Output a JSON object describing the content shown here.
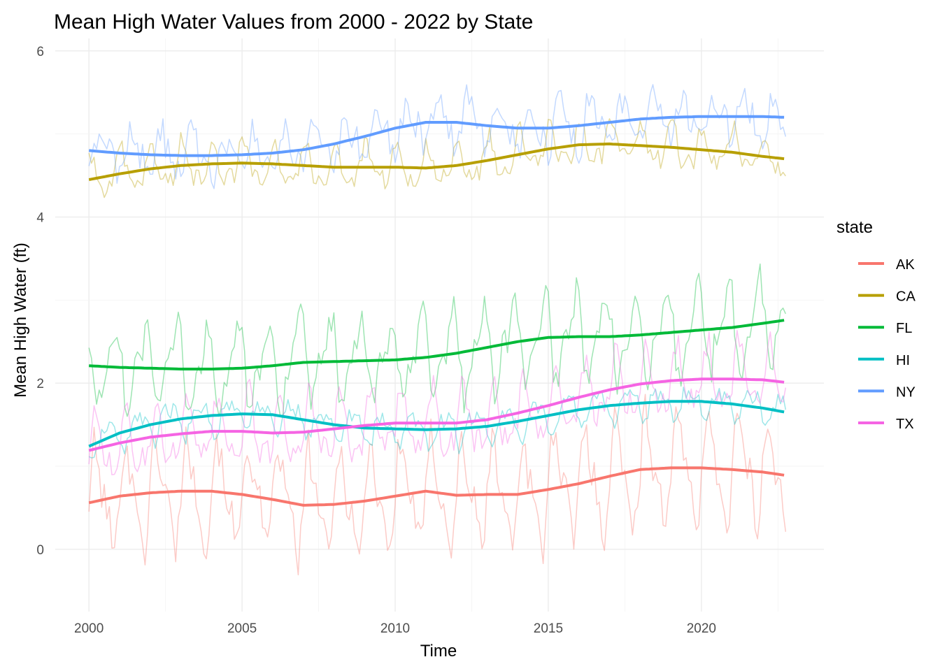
{
  "chart_data": {
    "type": "line",
    "title": "Mean High Water Values from 2000 - 2022 by State",
    "xlabel": "Time",
    "ylabel": "Mean High Water (ft)",
    "xlim": [
      1998.9,
      2024.0
    ],
    "ylim": [
      -0.75,
      6.15
    ],
    "x_ticks": [
      2000,
      2005,
      2010,
      2015,
      2020
    ],
    "y_ticks": [
      0,
      2,
      4,
      6
    ],
    "grid": true,
    "legend_title": "state",
    "legend_position": "right",
    "series": [
      {
        "name": "AK",
        "color": "#F8766D",
        "raw_amplitude": 0.55,
        "raw_noise": 0.15,
        "raw_range": [
          -0.45,
          2.4
        ],
        "smooth": {
          "x": [
            2000,
            2001,
            2002,
            2003,
            2004,
            2005,
            2006,
            2007,
            2008,
            2009,
            2010,
            2011,
            2012,
            2013,
            2014,
            2015,
            2016,
            2017,
            2018,
            2019,
            2020,
            2021,
            2022,
            2022.75
          ],
          "y": [
            0.56,
            0.64,
            0.68,
            0.7,
            0.7,
            0.66,
            0.6,
            0.53,
            0.54,
            0.58,
            0.64,
            0.7,
            0.65,
            0.66,
            0.66,
            0.72,
            0.79,
            0.88,
            0.96,
            0.98,
            0.98,
            0.96,
            0.93,
            0.89
          ]
        }
      },
      {
        "name": "CA",
        "color": "#B79F00",
        "raw_amplitude": 0.22,
        "raw_noise": 0.07,
        "raw_range": [
          4.2,
          5.35
        ],
        "smooth": {
          "x": [
            2000,
            2001,
            2002,
            2003,
            2004,
            2005,
            2006,
            2007,
            2008,
            2009,
            2010,
            2011,
            2012,
            2013,
            2014,
            2015,
            2016,
            2017,
            2018,
            2019,
            2020,
            2021,
            2022,
            2022.75
          ],
          "y": [
            4.45,
            4.52,
            4.58,
            4.62,
            4.64,
            4.65,
            4.64,
            4.62,
            4.6,
            4.6,
            4.6,
            4.59,
            4.62,
            4.68,
            4.75,
            4.82,
            4.87,
            4.88,
            4.86,
            4.84,
            4.81,
            4.78,
            4.73,
            4.7
          ]
        }
      },
      {
        "name": "FL",
        "color": "#00BA38",
        "raw_amplitude": 0.45,
        "raw_noise": 0.12,
        "raw_range": [
          1.6,
          3.45
        ],
        "smooth": {
          "x": [
            2000,
            2001,
            2002,
            2003,
            2004,
            2005,
            2006,
            2007,
            2008,
            2009,
            2010,
            2011,
            2012,
            2013,
            2014,
            2015,
            2016,
            2017,
            2018,
            2019,
            2020,
            2021,
            2022,
            2022.75
          ],
          "y": [
            2.21,
            2.19,
            2.18,
            2.17,
            2.17,
            2.18,
            2.21,
            2.25,
            2.26,
            2.27,
            2.28,
            2.31,
            2.36,
            2.43,
            2.5,
            2.55,
            2.56,
            2.56,
            2.58,
            2.61,
            2.64,
            2.67,
            2.72,
            2.76
          ]
        }
      },
      {
        "name": "HI",
        "color": "#00BFC4",
        "raw_amplitude": 0.17,
        "raw_noise": 0.06,
        "raw_range": [
          1.1,
          2.05
        ],
        "smooth": {
          "x": [
            2000,
            2001,
            2002,
            2003,
            2004,
            2005,
            2006,
            2007,
            2008,
            2009,
            2010,
            2011,
            2012,
            2013,
            2014,
            2015,
            2016,
            2017,
            2018,
            2019,
            2020,
            2021,
            2022,
            2022.75
          ],
          "y": [
            1.24,
            1.4,
            1.5,
            1.57,
            1.61,
            1.63,
            1.62,
            1.56,
            1.5,
            1.46,
            1.45,
            1.44,
            1.45,
            1.48,
            1.54,
            1.61,
            1.68,
            1.73,
            1.76,
            1.78,
            1.78,
            1.75,
            1.7,
            1.65
          ]
        }
      },
      {
        "name": "NY",
        "color": "#619CFF",
        "raw_amplitude": 0.25,
        "raw_noise": 0.12,
        "raw_range": [
          3.8,
          5.75
        ],
        "smooth": {
          "x": [
            2000,
            2001,
            2002,
            2003,
            2004,
            2005,
            2006,
            2007,
            2008,
            2009,
            2010,
            2011,
            2012,
            2013,
            2014,
            2015,
            2016,
            2017,
            2018,
            2019,
            2020,
            2021,
            2022,
            2022.75
          ],
          "y": [
            4.8,
            4.77,
            4.75,
            4.74,
            4.74,
            4.75,
            4.77,
            4.81,
            4.88,
            4.97,
            5.07,
            5.14,
            5.14,
            5.1,
            5.07,
            5.07,
            5.1,
            5.14,
            5.18,
            5.2,
            5.21,
            5.21,
            5.21,
            5.2
          ]
        }
      },
      {
        "name": "TX",
        "color": "#F564E3",
        "raw_amplitude": 0.35,
        "raw_noise": 0.1,
        "raw_range": [
          0.85,
          2.8
        ],
        "smooth": {
          "x": [
            2000,
            2001,
            2002,
            2003,
            2004,
            2005,
            2006,
            2007,
            2008,
            2009,
            2010,
            2011,
            2012,
            2013,
            2014,
            2015,
            2016,
            2017,
            2018,
            2019,
            2020,
            2021,
            2022,
            2022.75
          ],
          "y": [
            1.19,
            1.28,
            1.35,
            1.39,
            1.42,
            1.42,
            1.4,
            1.41,
            1.45,
            1.49,
            1.52,
            1.52,
            1.52,
            1.56,
            1.64,
            1.73,
            1.83,
            1.92,
            1.99,
            2.03,
            2.05,
            2.05,
            2.04,
            2.01
          ]
        }
      }
    ]
  }
}
